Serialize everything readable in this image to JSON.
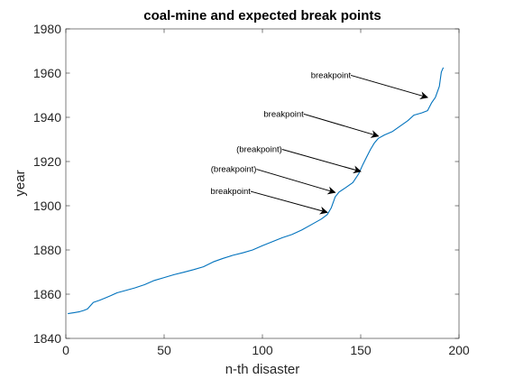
{
  "chart_data": {
    "type": "line",
    "title": "coal-mine and expected break points",
    "xlabel": "n-th disaster",
    "ylabel": "year",
    "xlim": [
      0,
      200
    ],
    "ylim": [
      1840,
      1980
    ],
    "xticks": [
      0,
      50,
      100,
      150,
      200
    ],
    "yticks": [
      1840,
      1860,
      1880,
      1900,
      1920,
      1940,
      1960,
      1980
    ],
    "grid": false,
    "line_color": "#0072BD",
    "series": [
      {
        "points": [
          [
            1,
            1851.2
          ],
          [
            4,
            1851.6
          ],
          [
            7,
            1852.1
          ],
          [
            9,
            1852.6
          ],
          [
            11,
            1853.3
          ],
          [
            14,
            1856.3
          ],
          [
            17,
            1857.2
          ],
          [
            20,
            1858.3
          ],
          [
            23,
            1859.4
          ],
          [
            26,
            1860.6
          ],
          [
            30,
            1861.6
          ],
          [
            35,
            1862.8
          ],
          [
            40,
            1864.3
          ],
          [
            45,
            1866.2
          ],
          [
            50,
            1867.5
          ],
          [
            55,
            1868.8
          ],
          [
            60,
            1869.9
          ],
          [
            65,
            1871.1
          ],
          [
            70,
            1872.4
          ],
          [
            75,
            1874.6
          ],
          [
            80,
            1876.2
          ],
          [
            85,
            1877.6
          ],
          [
            90,
            1878.7
          ],
          [
            95,
            1880.0
          ],
          [
            100,
            1881.9
          ],
          [
            105,
            1883.7
          ],
          [
            110,
            1885.5
          ],
          [
            115,
            1887.0
          ],
          [
            120,
            1889.0
          ],
          [
            125,
            1891.5
          ],
          [
            130,
            1894.0
          ],
          [
            133,
            1896.0
          ],
          [
            135,
            1899.0
          ],
          [
            137,
            1904.0
          ],
          [
            139,
            1906.2
          ],
          [
            142,
            1908.0
          ],
          [
            146,
            1910.5
          ],
          [
            149,
            1914.5
          ],
          [
            151,
            1918.5
          ],
          [
            153,
            1922.0
          ],
          [
            155,
            1925.5
          ],
          [
            157,
            1928.5
          ],
          [
            159,
            1930.5
          ],
          [
            162,
            1932.0
          ],
          [
            166,
            1933.5
          ],
          [
            170,
            1936.0
          ],
          [
            174,
            1938.5
          ],
          [
            177,
            1941.0
          ],
          [
            181,
            1942.0
          ],
          [
            184,
            1943.0
          ],
          [
            186,
            1946.5
          ],
          [
            188,
            1949.0
          ],
          [
            190,
            1954.0
          ],
          [
            191,
            1960.5
          ],
          [
            192,
            1962.5
          ]
        ]
      }
    ],
    "annotations": [
      {
        "text": "breakpoint",
        "from": [
          145,
          1959
        ],
        "to": [
          184,
          1949
        ]
      },
      {
        "text": "breakpoint",
        "from": [
          121,
          1941.5
        ],
        "to": [
          159,
          1931.5
        ]
      },
      {
        "text": "(breakpoint)",
        "from": [
          110,
          1925.5
        ],
        "to": [
          150,
          1915.5
        ]
      },
      {
        "text": "(breakpoint)",
        "from": [
          97,
          1916.5
        ],
        "to": [
          137,
          1906
        ]
      },
      {
        "text": "breakpoint",
        "from": [
          94,
          1906.5
        ],
        "to": [
          133,
          1897
        ]
      }
    ]
  }
}
